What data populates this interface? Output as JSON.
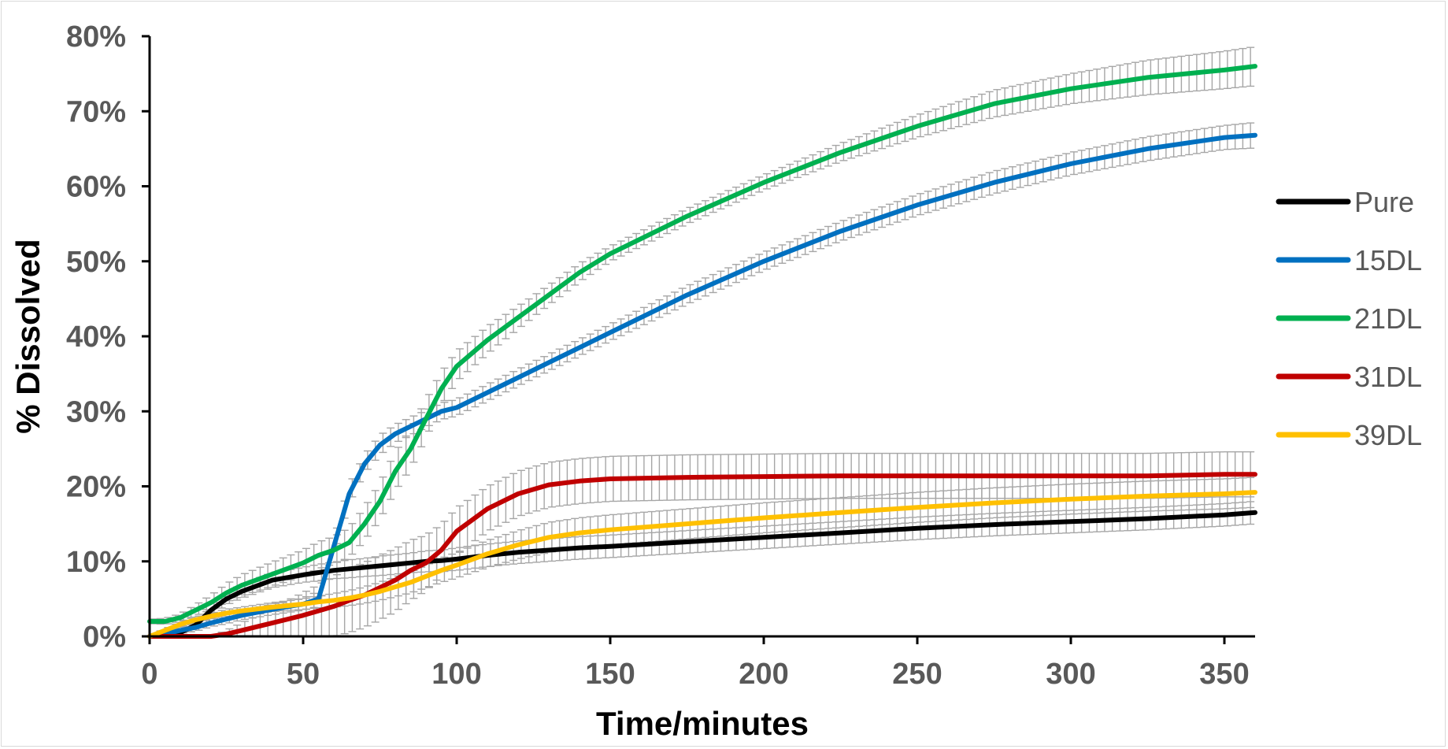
{
  "chart_data": {
    "type": "line",
    "xlabel": "Time/minutes",
    "ylabel": "% Dissolved",
    "xlim": [
      0,
      360
    ],
    "ylim": [
      0,
      80
    ],
    "x_ticks": [
      "0",
      "50",
      "100",
      "150",
      "200",
      "250",
      "300",
      "350"
    ],
    "y_ticks": [
      "0%",
      "10%",
      "20%",
      "30%",
      "40%",
      "50%",
      "60%",
      "70%",
      "80%"
    ],
    "grid": false,
    "error_bars": true,
    "error_bar_color": "#a6a6a6",
    "legend_position": "right",
    "x": [
      0,
      5,
      10,
      15,
      20,
      25,
      30,
      40,
      50,
      55,
      60,
      65,
      70,
      75,
      80,
      85,
      90,
      95,
      100,
      110,
      120,
      130,
      140,
      150,
      175,
      200,
      225,
      250,
      275,
      300,
      325,
      350,
      360
    ],
    "series": [
      {
        "name": "Pure",
        "color": "#000000",
        "values": [
          0,
          0,
          0.5,
          1.5,
          3.5,
          5,
          6,
          7.5,
          8.2,
          8.5,
          8.8,
          9,
          9.2,
          9.4,
          9.6,
          9.8,
          10,
          10.1,
          10.3,
          10.8,
          11.2,
          11.5,
          11.8,
          12,
          12.6,
          13.2,
          13.8,
          14.4,
          14.9,
          15.3,
          15.7,
          16.2,
          16.5
        ],
        "error": [
          0,
          0.3,
          0.5,
          0.6,
          0.7,
          0.8,
          0.9,
          1,
          1,
          1.1,
          1.1,
          1.2,
          1.2,
          1.3,
          1.3,
          1.3,
          1.4,
          1.4,
          1.5,
          1.5,
          1.5,
          1.5,
          1.5,
          1.5,
          1.5,
          1.5,
          1.5,
          1.5,
          1.5,
          1.5,
          1.5,
          1.5,
          1.5
        ]
      },
      {
        "name": "15DL",
        "color": "#0070c0",
        "values": [
          0,
          0.3,
          0.8,
          1.2,
          1.8,
          2.3,
          2.8,
          3.6,
          4.3,
          5,
          12,
          19,
          23,
          25.5,
          27,
          28,
          29,
          30,
          30.5,
          32.5,
          34.5,
          36.5,
          38.5,
          40.5,
          45.5,
          50,
          54,
          57.5,
          60.5,
          63,
          65,
          66.5,
          66.8
        ],
        "error": [
          0,
          0.3,
          0.4,
          0.5,
          0.5,
          0.6,
          0.6,
          0.7,
          0.8,
          1,
          1,
          1.2,
          1.2,
          1.3,
          1.2,
          1.2,
          1.1,
          1.1,
          1.1,
          1.1,
          1.1,
          1.1,
          1.1,
          1.1,
          1.2,
          1.2,
          1.3,
          1.4,
          1.5,
          1.5,
          1.6,
          1.6,
          1.7
        ]
      },
      {
        "name": "21DL",
        "color": "#00b050",
        "values": [
          2,
          2,
          2.5,
          3.5,
          4.5,
          5.8,
          6.8,
          8.3,
          9.8,
          10.8,
          11.5,
          12.5,
          15,
          18,
          22,
          25,
          29,
          33,
          36,
          39.5,
          42.5,
          45.5,
          48.5,
          51,
          56,
          60.5,
          64.5,
          68,
          71,
          73,
          74.5,
          75.5,
          76
        ],
        "error": [
          0.3,
          0.4,
          0.5,
          0.7,
          1,
          1.2,
          1.4,
          1.6,
          1.7,
          1.8,
          1.8,
          2,
          2.2,
          2.4,
          2.6,
          2.6,
          2.5,
          2.2,
          2,
          1.8,
          1.5,
          1.3,
          1.2,
          1,
          1,
          1,
          1.2,
          1.5,
          1.8,
          2,
          2.3,
          2.5,
          2.6
        ]
      },
      {
        "name": "31DL",
        "color": "#c00000",
        "values": [
          0,
          0,
          0,
          0,
          0,
          0.3,
          0.8,
          1.8,
          2.8,
          3.4,
          4,
          4.8,
          5.5,
          6.5,
          7.5,
          8.8,
          9.8,
          11.5,
          14,
          17,
          19,
          20.2,
          20.7,
          21,
          21.2,
          21.3,
          21.4,
          21.4,
          21.4,
          21.4,
          21.4,
          21.6,
          21.6
        ],
        "error": [
          0,
          0,
          0,
          0,
          0,
          0.5,
          1,
          2,
          3,
          3.5,
          4,
          4.3,
          4.3,
          4.3,
          4.2,
          4,
          3.7,
          3.4,
          3.1,
          3,
          3,
          3,
          3,
          3,
          3,
          3,
          3,
          3,
          3,
          3,
          3,
          3,
          3
        ]
      },
      {
        "name": "39DL",
        "color": "#ffc000",
        "values": [
          0,
          0.8,
          1.6,
          2.2,
          2.7,
          3.1,
          3.4,
          3.9,
          4.3,
          4.6,
          4.8,
          5.1,
          5.5,
          6,
          6.6,
          7.2,
          8,
          8.8,
          9.5,
          11,
          12.2,
          13.2,
          13.8,
          14.2,
          15,
          15.8,
          16.5,
          17.2,
          17.8,
          18.3,
          18.7,
          19,
          19.2
        ],
        "error": [
          0.1,
          0.2,
          0.3,
          0.4,
          0.4,
          0.5,
          0.5,
          0.6,
          0.7,
          0.8,
          0.9,
          1,
          1.1,
          1.2,
          1.3,
          1.4,
          1.5,
          1.6,
          1.7,
          1.8,
          1.9,
          2,
          2,
          2,
          2,
          2,
          2,
          2,
          2,
          2,
          2,
          2,
          2
        ]
      }
    ]
  }
}
